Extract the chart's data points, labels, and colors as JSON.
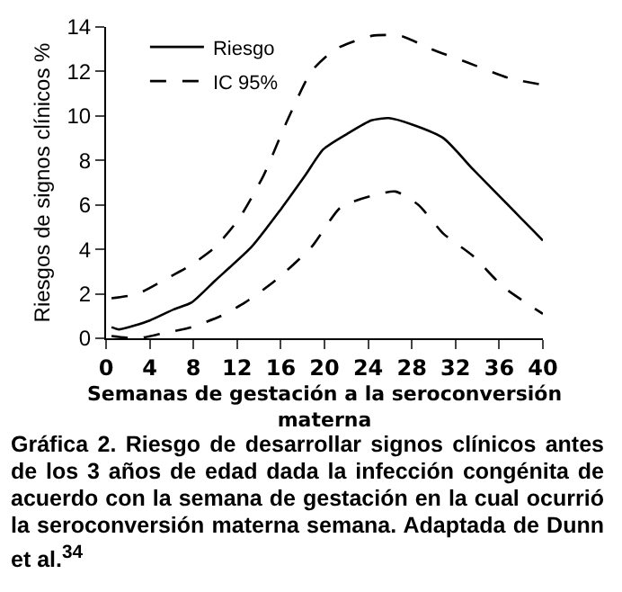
{
  "chart_data": {
    "type": "line",
    "xlabel": "Semanas de gestación a la seroconversión materna",
    "ylabel": "Riesgos de signos clínicos %",
    "xlim": [
      0,
      40
    ],
    "xticks": [
      0,
      4,
      8,
      12,
      16,
      20,
      24,
      28,
      32,
      36,
      40
    ],
    "ylim": [
      0,
      14
    ],
    "yticks": [
      0,
      2,
      4,
      6,
      8,
      10,
      12,
      14
    ],
    "grid": false,
    "legend": "top left",
    "marker": "none",
    "series": [
      {
        "name": "Riesgo",
        "color": "#000000",
        "line_style": "solid",
        "x": [
          0.5,
          1.2,
          4,
          6.2,
          7.8,
          10,
          13.3,
          16,
          18.2,
          19.9,
          22.1,
          24.3,
          25.9,
          28.1,
          30.9,
          33.6,
          35.8,
          38,
          40
        ],
        "values": [
          0.5,
          0.4,
          0.8,
          1.3,
          1.6,
          2.6,
          4.1,
          5.8,
          7.3,
          8.5,
          9.2,
          9.8,
          9.9,
          9.6,
          9,
          7.6,
          6.5,
          5.4,
          4.4
        ]
      },
      {
        "name": "IC 95%",
        "color": "#000000",
        "line_style": "dashed",
        "x": [
          0.5,
          2.9,
          5.6,
          7.8,
          10,
          12.2,
          14.4,
          16.6,
          18.8,
          21,
          24.3,
          27,
          29.8,
          33.1,
          36.9,
          40
        ],
        "values": [
          1.8,
          2,
          2.7,
          3.3,
          4.1,
          5.4,
          7.3,
          9.8,
          12,
          13,
          13.6,
          13.6,
          13,
          12.4,
          11.7,
          11.4
        ]
      },
      {
        "color": "#000000",
        "line_style": "dashed",
        "x": [
          0.5,
          2.9,
          5,
          7.8,
          10.5,
          12.7,
          15.5,
          18.8,
          21.5,
          24.3,
          26.5,
          28.6,
          30.9,
          33.6,
          36.4,
          40
        ],
        "values": [
          0.1,
          0,
          0.2,
          0.5,
          1,
          1.6,
          2.6,
          4.1,
          5.9,
          6.4,
          6.6,
          6,
          4.7,
          3.7,
          2.3,
          1.1
        ]
      }
    ],
    "annotations": [
      "Gráfica 2. Riesgo de desarrollar signos clínicos antes de los 3 años de edad dada la infección congénita de acuerdo con la semana de gestación en la cual ocurrió la seroconversión materna semana. Adaptada de Dunn et al.$^{34}$"
    ]
  }
}
